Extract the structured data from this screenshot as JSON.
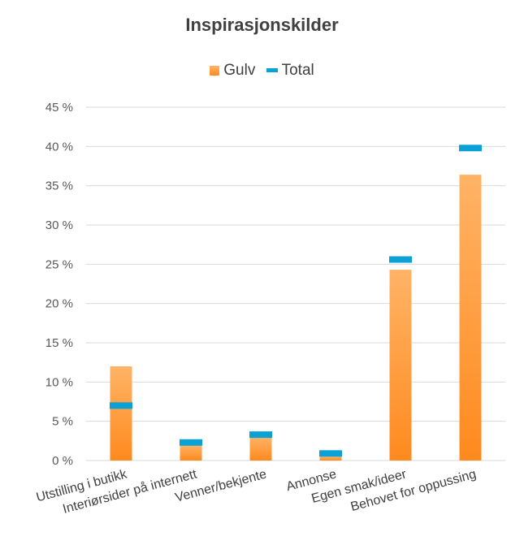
{
  "chart_data": {
    "type": "bar",
    "title": "Inspirasjonskilder",
    "categories": [
      "Utstilling i butikk",
      "Interiørsider på internett",
      "Venner/bekjente",
      "Annonse",
      "Egen smak/ideer",
      "Behovet for oppussing"
    ],
    "series": [
      {
        "name": "Gulv",
        "type": "bar",
        "values": [
          12.0,
          2.0,
          3.0,
          0.5,
          24.3,
          36.4
        ]
      },
      {
        "name": "Total",
        "type": "marker",
        "values": [
          7.0,
          2.3,
          3.3,
          0.9,
          25.6,
          39.8
        ]
      }
    ],
    "ylim": [
      0,
      45
    ],
    "yticks": [
      "0 %",
      "5 %",
      "10 %",
      "15 %",
      "20 %",
      "25 %",
      "30 %",
      "35 %",
      "40 %",
      "45 %"
    ],
    "grid": true,
    "legend": "top",
    "colors": {
      "bar_top": "#ffb366",
      "bar_bottom": "#ff8a1e",
      "marker": "#0aa2d6",
      "grid": "#d9d9d9"
    }
  }
}
